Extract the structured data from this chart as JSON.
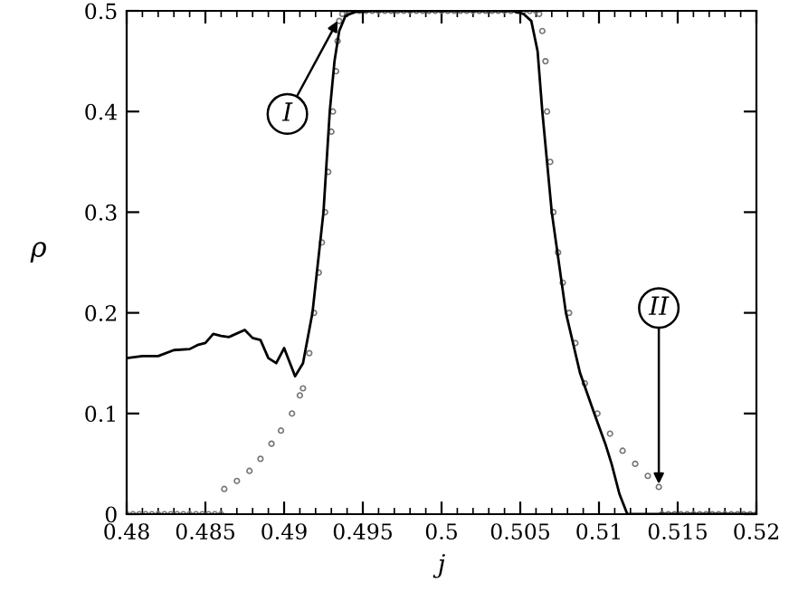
{
  "chart_data": {
    "type": "line",
    "xlabel": "j",
    "ylabel": "ρ",
    "xlim": [
      0.48,
      0.52
    ],
    "ylim": [
      0,
      0.5
    ],
    "xticks": [
      0.48,
      0.485,
      0.49,
      0.495,
      0.5,
      0.505,
      0.51,
      0.515,
      0.52
    ],
    "yticks": [
      0,
      0.1,
      0.2,
      0.3,
      0.4,
      0.5
    ],
    "grid": false,
    "legend": false,
    "series": [
      {
        "color": "#000000",
        "marker": "none",
        "line_style": "solid",
        "x": [
          0.48,
          0.481,
          0.482,
          0.483,
          0.484,
          0.4845,
          0.485,
          0.4855,
          0.486,
          0.4865,
          0.4875,
          0.488,
          0.4885,
          0.489,
          0.4895,
          0.49,
          0.4907,
          0.4912,
          0.4918,
          0.4925,
          0.4929,
          0.4932,
          0.4935,
          0.4939,
          0.4945,
          0.4955,
          0.5045,
          0.5052,
          0.5057,
          0.5061,
          0.5064,
          0.507,
          0.5079,
          0.5088,
          0.5097,
          0.5104,
          0.5108,
          0.5113,
          0.5118,
          0.52
        ],
        "values": [
          0.155,
          0.157,
          0.157,
          0.163,
          0.164,
          0.168,
          0.17,
          0.179,
          0.177,
          0.176,
          0.183,
          0.175,
          0.173,
          0.155,
          0.15,
          0.165,
          0.137,
          0.15,
          0.2,
          0.3,
          0.4,
          0.45,
          0.48,
          0.495,
          0.499,
          0.5,
          0.5,
          0.497,
          0.49,
          0.46,
          0.4,
          0.3,
          0.2,
          0.14,
          0.1,
          0.07,
          0.05,
          0.02,
          0,
          0
        ]
      },
      {
        "type": "scatter",
        "color": "#777777",
        "marker": "circle",
        "x": [
          0.48,
          0.4804,
          0.4808,
          0.4812,
          0.4816,
          0.482,
          0.4824,
          0.4828,
          0.4832,
          0.4836,
          0.484,
          0.4844,
          0.4848,
          0.4852,
          0.4856,
          0.486,
          0.4862,
          0.487,
          0.4878,
          0.4885,
          0.4892,
          0.4898,
          0.4905,
          0.491,
          0.4912,
          0.4916,
          0.4919,
          0.4922,
          0.4924,
          0.4926,
          0.4928,
          0.493,
          0.4931,
          0.4933,
          0.4934,
          0.4935,
          0.4937,
          0.494,
          0.4944,
          0.4948,
          0.4952,
          0.4956,
          0.496,
          0.4964,
          0.4968,
          0.4972,
          0.4976,
          0.498,
          0.4984,
          0.4988,
          0.4992,
          0.4996,
          0.5,
          0.5004,
          0.5008,
          0.5012,
          0.5016,
          0.502,
          0.5024,
          0.5028,
          0.5032,
          0.5036,
          0.504,
          0.5044,
          0.5048,
          0.5052,
          0.5056,
          0.506,
          0.5062,
          0.5064,
          0.5066,
          0.5067,
          0.5069,
          0.5071,
          0.5074,
          0.5077,
          0.5081,
          0.5085,
          0.5091,
          0.5099,
          0.5107,
          0.5115,
          0.5123,
          0.5131,
          0.5138,
          0.514,
          0.5144,
          0.5148,
          0.5152,
          0.5156,
          0.516,
          0.5164,
          0.5168,
          0.5172,
          0.5176,
          0.518,
          0.5184,
          0.5188,
          0.5192,
          0.5196,
          0.52
        ],
        "values": [
          0,
          0,
          0,
          0,
          0,
          0,
          0,
          0,
          0,
          0,
          0,
          0,
          0,
          0,
          0,
          0,
          0.025,
          0.033,
          0.043,
          0.055,
          0.07,
          0.083,
          0.1,
          0.118,
          0.125,
          0.16,
          0.2,
          0.24,
          0.27,
          0.3,
          0.34,
          0.38,
          0.4,
          0.44,
          0.47,
          0.49,
          0.497,
          0.5,
          0.5,
          0.5,
          0.5,
          0.5,
          0.5,
          0.5,
          0.5,
          0.5,
          0.5,
          0.5,
          0.5,
          0.5,
          0.5,
          0.5,
          0.5,
          0.5,
          0.5,
          0.5,
          0.5,
          0.5,
          0.5,
          0.5,
          0.5,
          0.5,
          0.5,
          0.5,
          0.5,
          0.5,
          0.5,
          0.5,
          0.497,
          0.48,
          0.45,
          0.4,
          0.35,
          0.3,
          0.26,
          0.23,
          0.2,
          0.17,
          0.13,
          0.1,
          0.08,
          0.063,
          0.05,
          0.038,
          0.027,
          0,
          0,
          0,
          0,
          0,
          0,
          0,
          0,
          0,
          0,
          0,
          0,
          0,
          0,
          0,
          0
        ]
      }
    ],
    "annotations": [
      {
        "text": "I",
        "x": 0.4934,
        "y": 0.49
      },
      {
        "text": "II",
        "x": 0.5138,
        "y": 0.03
      }
    ]
  }
}
